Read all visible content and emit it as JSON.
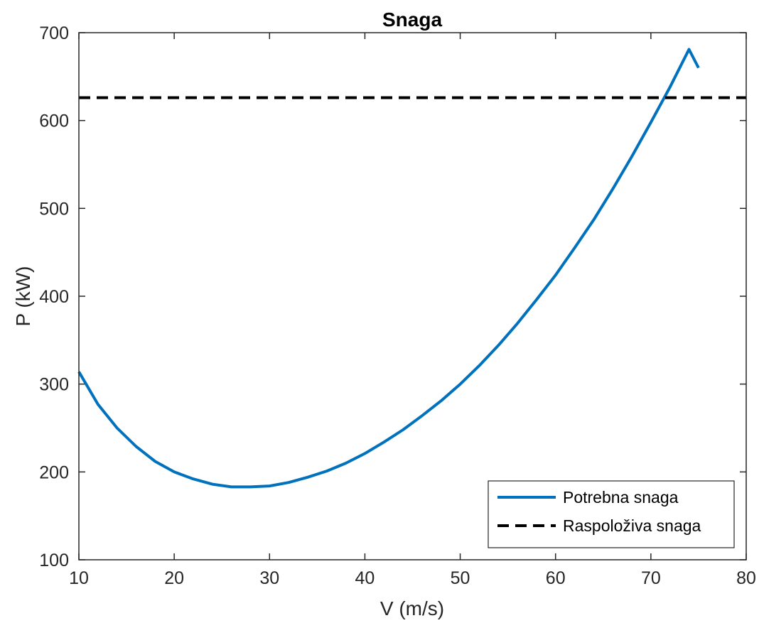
{
  "chart_data": {
    "type": "line",
    "title": "Snaga",
    "xlabel": "V (m/s)",
    "ylabel": "P (kW)",
    "xlim": [
      10,
      80
    ],
    "ylim": [
      100,
      700
    ],
    "xticks": [
      "10",
      "20",
      "30",
      "40",
      "50",
      "60",
      "70",
      "80"
    ],
    "yticks": [
      "100",
      "200",
      "300",
      "400",
      "500",
      "600",
      "700"
    ],
    "grid": false,
    "legend_position": "bottom-right",
    "series": [
      {
        "name": "Potrebna snaga",
        "color": "#0072BD",
        "style": "solid",
        "x": [
          10,
          12,
          14,
          16,
          18,
          20,
          22,
          24,
          26,
          28,
          30,
          32,
          34,
          36,
          38,
          40,
          42,
          44,
          46,
          48,
          50,
          52,
          54,
          56,
          58,
          60,
          62,
          64,
          66,
          68,
          70,
          72,
          74,
          75
        ],
        "y": [
          314,
          277,
          250,
          229,
          212,
          200,
          192,
          186,
          183,
          183,
          184,
          188,
          194,
          201,
          210,
          221,
          234,
          248,
          264,
          281,
          300,
          321,
          344,
          369,
          396,
          424,
          455,
          487,
          522,
          559,
          598,
          638,
          681,
          660
        ]
      },
      {
        "name": "Raspoloživa snaga",
        "color": "#000000",
        "style": "dashed",
        "x": [
          10,
          80
        ],
        "y": [
          626,
          626
        ]
      }
    ]
  }
}
